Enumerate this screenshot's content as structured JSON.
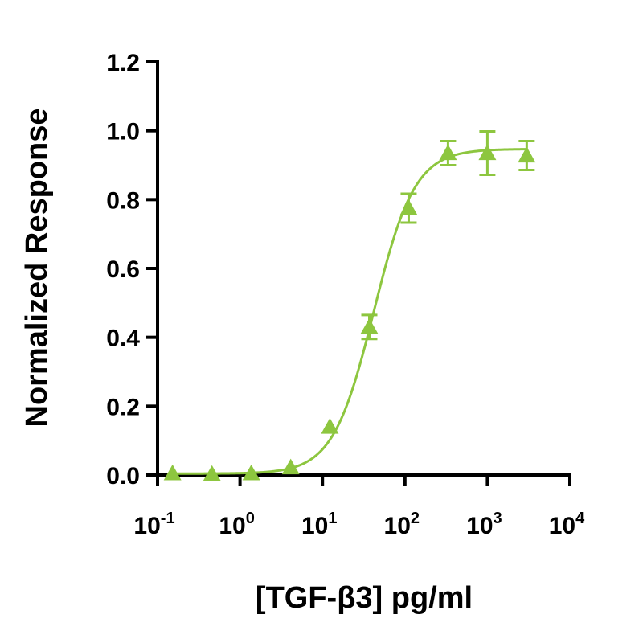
{
  "chart_data": {
    "type": "scatter",
    "xlabel": "[TGF-β3] pg/ml",
    "ylabel": "Normalized Response",
    "xscale": "log",
    "xlim": [
      0.1,
      10000
    ],
    "ylim": [
      0,
      1.2
    ],
    "x_ticks": [
      {
        "value": 0.1,
        "base": "10",
        "exp": "-1"
      },
      {
        "value": 1,
        "base": "10",
        "exp": "0"
      },
      {
        "value": 10,
        "base": "10",
        "exp": "1"
      },
      {
        "value": 100,
        "base": "10",
        "exp": "2"
      },
      {
        "value": 1000,
        "base": "10",
        "exp": "3"
      },
      {
        "value": 10000,
        "base": "10",
        "exp": "4"
      }
    ],
    "y_ticks": [
      {
        "value": 0.0,
        "label": "0.0"
      },
      {
        "value": 0.2,
        "label": "0.2"
      },
      {
        "value": 0.4,
        "label": "0.4"
      },
      {
        "value": 0.6,
        "label": "0.6"
      },
      {
        "value": 0.8,
        "label": "0.8"
      },
      {
        "value": 1.0,
        "label": "1.0"
      },
      {
        "value": 1.2,
        "label": "1.2"
      }
    ],
    "grid": false,
    "color": "#8dc63f",
    "series": [
      {
        "marker": "triangle",
        "points": [
          {
            "x": 0.152,
            "y": 0.005,
            "err": 0.0
          },
          {
            "x": 0.457,
            "y": 0.003,
            "err": 0.0
          },
          {
            "x": 1.37,
            "y": 0.005,
            "err": 0.0
          },
          {
            "x": 4.12,
            "y": 0.022,
            "err": 0.0
          },
          {
            "x": 12.3,
            "y": 0.14,
            "err": 0.0
          },
          {
            "x": 37.0,
            "y": 0.43,
            "err": 0.035
          },
          {
            "x": 111,
            "y": 0.775,
            "err": 0.042
          },
          {
            "x": 333,
            "y": 0.935,
            "err": 0.035
          },
          {
            "x": 1000,
            "y": 0.935,
            "err": 0.063
          },
          {
            "x": 3000,
            "y": 0.928,
            "err": 0.042
          }
        ]
      }
    ],
    "fit": {
      "model": "4PL",
      "bottom": 0.004,
      "top": 0.947,
      "ec50": 42,
      "hill": 1.75
    }
  }
}
